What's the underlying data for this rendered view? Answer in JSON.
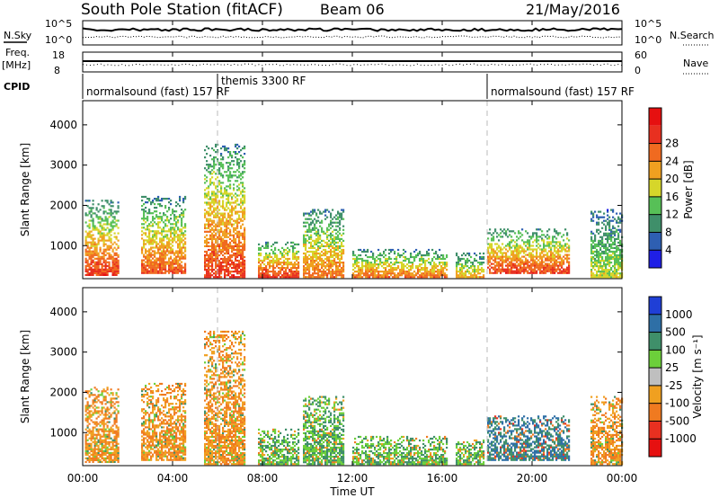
{
  "header": {
    "station": "South Pole Station (fitACF)",
    "beam": "Beam 06",
    "date": "21/May/2016"
  },
  "strips": {
    "nsky_label": "N.Sky",
    "nsky_ticks": [
      "10^5",
      "10^0"
    ],
    "nsearch_label": "N.Search",
    "nsearch_ticks": [
      "10^5",
      "10^0"
    ],
    "freq_label": "Freq.",
    "freq_unit": "[MHz]",
    "freq_ticks": [
      "18",
      "8"
    ],
    "nave_label": "Nave",
    "nave_ticks": [
      "60",
      "0"
    ],
    "cpid_label": "CPID"
  },
  "cpid_segments": [
    {
      "label": "normalsound (fast) 157 RF",
      "start_hour": 0,
      "end_hour": 6
    },
    {
      "label": "themis 3300 RF",
      "start_hour": 6,
      "end_hour": 18
    },
    {
      "label": "normalsound (fast) 157 RF",
      "start_hour": 18,
      "end_hour": 24
    }
  ],
  "x_axis": {
    "label": "Time UT",
    "ticks": [
      "00:00",
      "04:00",
      "08:00",
      "12:00",
      "16:00",
      "20:00",
      "00:00"
    ]
  },
  "power_colorbar": {
    "label": "Power [dB]",
    "ticks": [
      "4",
      "8",
      "12",
      "16",
      "20",
      "24",
      "28"
    ],
    "colors": [
      "#1f1fe6",
      "#2e5fb2",
      "#3f8f6a",
      "#57c057",
      "#d6d62a",
      "#f0a020",
      "#f06a20",
      "#e83020",
      "#e61010"
    ]
  },
  "velocity_colorbar": {
    "label": "Velocity [m s⁻¹]",
    "ticks": [
      "1000",
      "500",
      "100",
      "25",
      "-25",
      "-100",
      "-500",
      "-1000"
    ],
    "colors": [
      "#1f3fd6",
      "#2e6fa6",
      "#3f8f6a",
      "#6ccf3a",
      "#bfbfbf",
      "#f0a020",
      "#f07a20",
      "#e83020",
      "#e61010"
    ]
  },
  "chart_data": [
    {
      "type": "heatmap",
      "title": "",
      "xlabel": "Time UT",
      "ylabel": "Slant Range [km]",
      "quantity": "Power [dB]",
      "xlim": [
        0,
        24
      ],
      "ylim": [
        180,
        4600
      ],
      "y_ticks": [
        1000,
        2000,
        3000,
        4000
      ],
      "echo_regions": [
        {
          "start_hour": 0.1,
          "end_hour": 1.6,
          "range_km": [
            250,
            2100
          ],
          "peak_db": 28
        },
        {
          "start_hour": 2.6,
          "end_hour": 4.6,
          "range_km": [
            300,
            2200
          ],
          "peak_db": 26
        },
        {
          "start_hour": 5.4,
          "end_hour": 7.2,
          "range_km": [
            200,
            3500
          ],
          "peak_db": 28
        },
        {
          "start_hour": 7.8,
          "end_hour": 9.6,
          "range_km": [
            200,
            1100
          ],
          "peak_db": 28
        },
        {
          "start_hour": 9.8,
          "end_hour": 11.6,
          "range_km": [
            200,
            1900
          ],
          "peak_db": 24
        },
        {
          "start_hour": 12.0,
          "end_hour": 16.2,
          "range_km": [
            200,
            900
          ],
          "peak_db": 24
        },
        {
          "start_hour": 16.6,
          "end_hour": 17.8,
          "range_km": [
            200,
            800
          ],
          "peak_db": 20
        },
        {
          "start_hour": 18.0,
          "end_hour": 21.6,
          "range_km": [
            300,
            1400
          ],
          "peak_db": 28
        },
        {
          "start_hour": 22.6,
          "end_hour": 24.0,
          "range_km": [
            200,
            1900
          ],
          "peak_db": 16
        }
      ]
    },
    {
      "type": "heatmap",
      "title": "",
      "xlabel": "Time UT",
      "ylabel": "Slant Range [km]",
      "quantity": "Velocity [m s⁻¹]",
      "xlim": [
        0,
        24
      ],
      "ylim": [
        180,
        4600
      ],
      "y_ticks": [
        1000,
        2000,
        3000,
        4000
      ],
      "echo_regions": [
        {
          "start_hour": 0.1,
          "end_hour": 1.6,
          "range_km": [
            250,
            2100
          ],
          "velocity_ms": -100
        },
        {
          "start_hour": 2.6,
          "end_hour": 4.6,
          "range_km": [
            300,
            2200
          ],
          "velocity_ms": -100
        },
        {
          "start_hour": 5.4,
          "end_hour": 7.2,
          "range_km": [
            200,
            3500
          ],
          "velocity_ms": -100
        },
        {
          "start_hour": 7.8,
          "end_hour": 9.6,
          "range_km": [
            200,
            1100
          ],
          "velocity_ms": 100
        },
        {
          "start_hour": 9.8,
          "end_hour": 11.6,
          "range_km": [
            200,
            1900
          ],
          "velocity_ms": 100
        },
        {
          "start_hour": 12.0,
          "end_hour": 16.2,
          "range_km": [
            200,
            900
          ],
          "velocity_ms": 100
        },
        {
          "start_hour": 16.6,
          "end_hour": 17.8,
          "range_km": [
            200,
            800
          ],
          "velocity_ms": 100
        },
        {
          "start_hour": 18.0,
          "end_hour": 21.6,
          "range_km": [
            300,
            1400
          ],
          "velocity_ms": 500
        },
        {
          "start_hour": 22.6,
          "end_hour": 24.0,
          "range_km": [
            200,
            1900
          ],
          "velocity_ms": -100
        }
      ]
    }
  ]
}
